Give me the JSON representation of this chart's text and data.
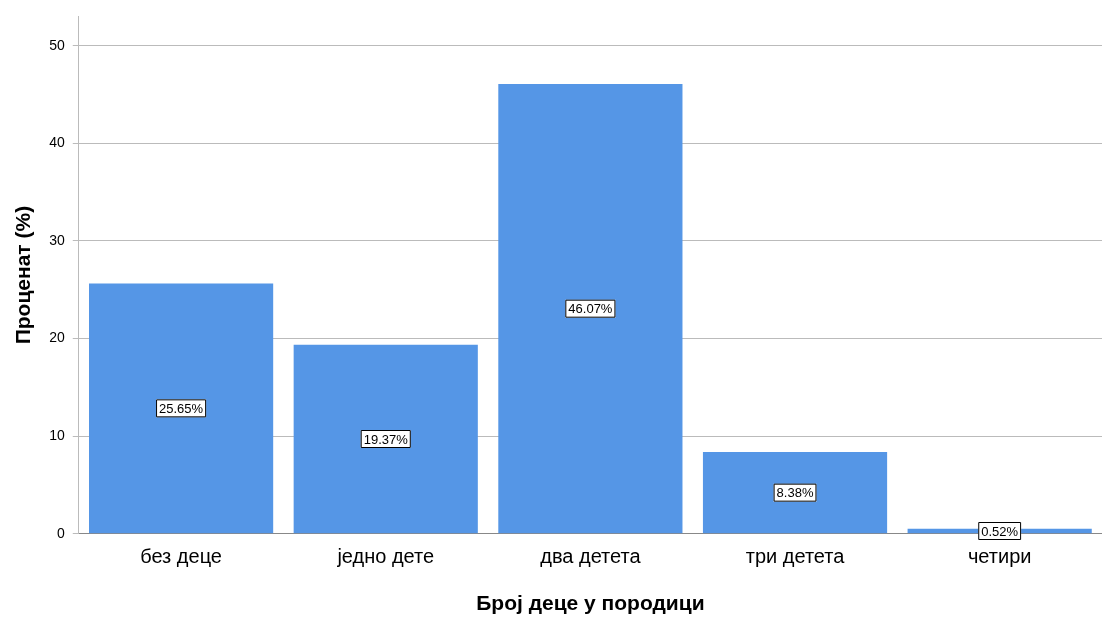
{
  "chart_data": {
    "type": "bar",
    "xlabel": "Број деце у породици",
    "ylabel": "Проценат (%)",
    "categories": [
      "без деце",
      "једно дете",
      "два детета",
      "три детета",
      "четири"
    ],
    "values": [
      25.65,
      19.37,
      46.07,
      8.38,
      0.52
    ],
    "value_labels": [
      "25.65%",
      "19.37%",
      "46.07%",
      "8.38%",
      "0.52%"
    ],
    "color": "#5596e6",
    "ylim": [
      0,
      53
    ],
    "yticks": [
      0,
      10,
      20,
      30,
      40,
      50
    ],
    "grid": "y",
    "legend": false
  }
}
